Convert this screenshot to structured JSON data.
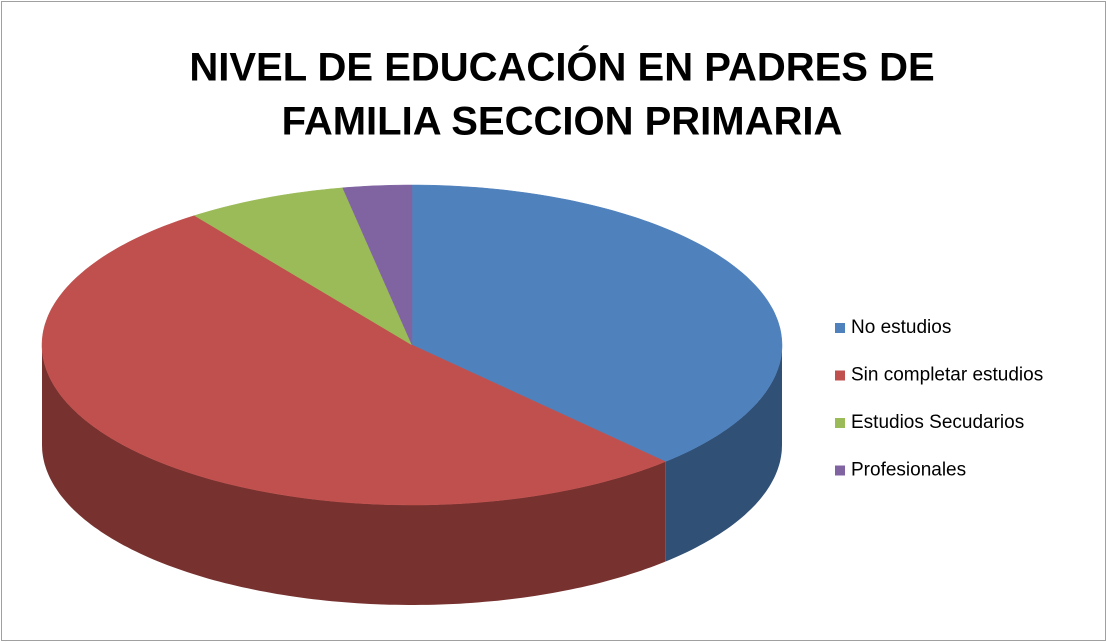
{
  "chart_data": {
    "type": "pie",
    "title": [
      "NIVEL DE EDUCACIÓN EN PADRES DE",
      "FAMILIA SECCION PRIMARIA"
    ],
    "categories": [
      "No estudios",
      "Sin completar estudios",
      "Estudios Secudarios",
      "Profesionales"
    ],
    "values": [
      38,
      52,
      7,
      3
    ],
    "colors": [
      "#4f81bd",
      "#c0504d",
      "#9bbb59",
      "#8064a2"
    ],
    "legend": "right"
  }
}
